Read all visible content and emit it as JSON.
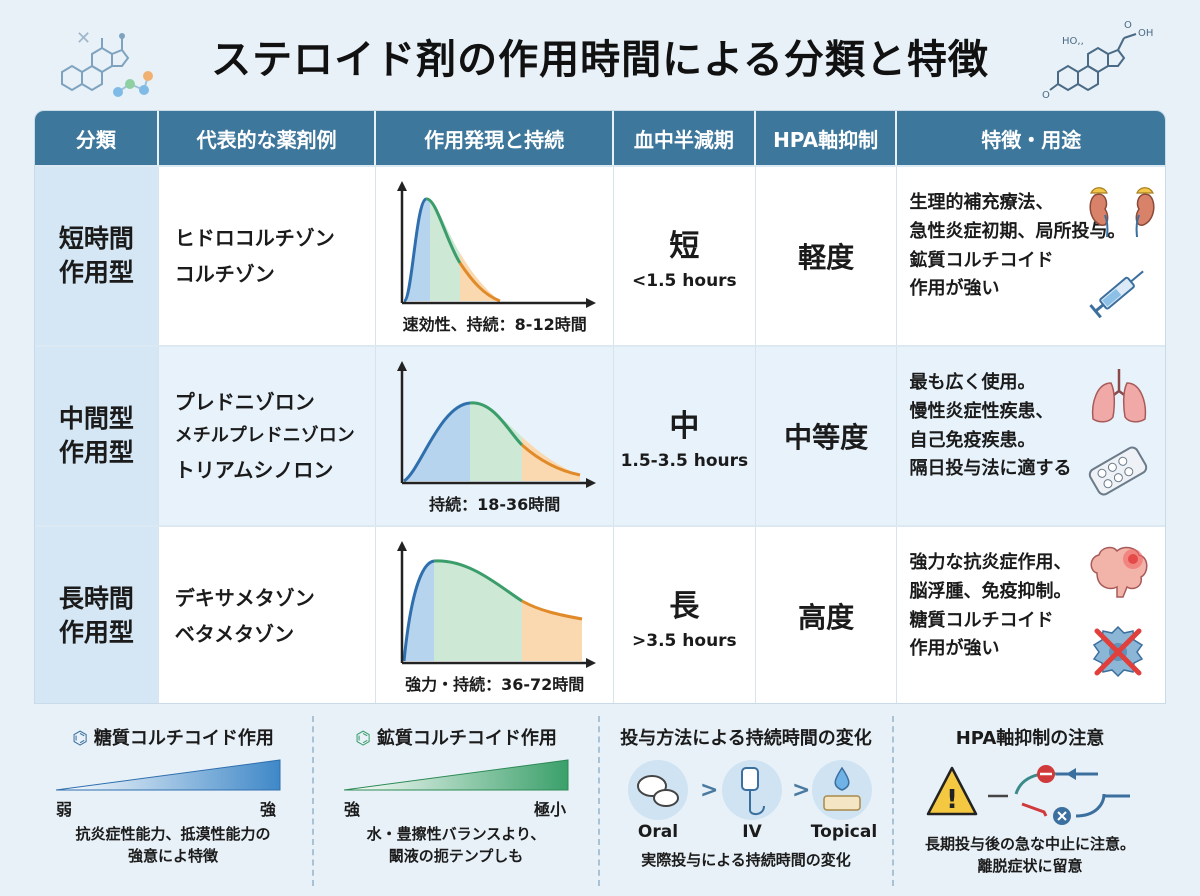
{
  "title": "ステロイド剤の作用時間による分類と特徴",
  "headers": [
    "分類",
    "代表的な薬剤例",
    "作用発現と持続",
    "血中半減期",
    "HPA軸抑制",
    "特徴・用途"
  ],
  "rows": [
    {
      "category": [
        "短時間",
        "作用型"
      ],
      "drugs": [
        "ヒドロコルチゾン",
        "コルチゾン"
      ],
      "curve_caption": "速効性、持続：8-12時間",
      "half_big": "短",
      "half_small": "<1.5 hours",
      "hpa": "軽度",
      "features": [
        "生理的補充療法、",
        "急性炎症初期、局所投与。",
        "鉱質コルチコイド",
        "作用が強い"
      ]
    },
    {
      "category": [
        "中間型",
        "作用型"
      ],
      "drugs": [
        "プレドニゾロン",
        "メチルプレドニゾロン",
        "トリアムシノロン"
      ],
      "curve_caption": "持続：18-36時間",
      "half_big": "中",
      "half_small": "1.5-3.5 hours",
      "hpa": "中等度",
      "features": [
        "最も広く使用。",
        "慢性炎症性疾患、",
        "自己免疫疾患。",
        "隔日投与法に適する"
      ]
    },
    {
      "category": [
        "長時間",
        "作用型"
      ],
      "drugs": [
        "デキサメタゾン",
        "ベタメタゾン"
      ],
      "curve_caption": "強力・持続：36-72時間",
      "half_big": "長",
      "half_small": ">3.5 hours",
      "hpa": "高度",
      "features": [
        "強力な抗炎症作用、",
        "脳浮腫、免疫抑制。",
        "糖質コルチコイド",
        "作用が強い"
      ]
    }
  ],
  "panels": {
    "gluco": {
      "title": "糖質コルチコイド作用",
      "low": "弱",
      "high": "強",
      "text": [
        "抗炎症性能力、抵漠性能力の",
        "強意によ特徴"
      ]
    },
    "mineral": {
      "title": "鉱質コルチコイド作用",
      "low": "強",
      "high": "極小",
      "text": [
        "水・豊擦性バランスより、",
        "闞液の扼テンプしも"
      ]
    },
    "route": {
      "title": "投与方法による持続時間の変化",
      "oral": "Oral",
      "iv": "IV",
      "topical": "Topical",
      "gt": ">",
      "text": "実際投与による持続時間の変化"
    },
    "hpa": {
      "title": "HPA軸抑制の注意",
      "text": [
        "長期投与後の急な中止に注意。",
        "離脱症状に留意"
      ]
    }
  },
  "colors": {
    "header": "#3e779c",
    "blue": "#b7d4ee",
    "green": "#cde8d4",
    "orange": "#fbd9b0",
    "line_blue": "#2f6fae",
    "line_green": "#3a9d6a",
    "line_orange": "#e08a2a"
  }
}
